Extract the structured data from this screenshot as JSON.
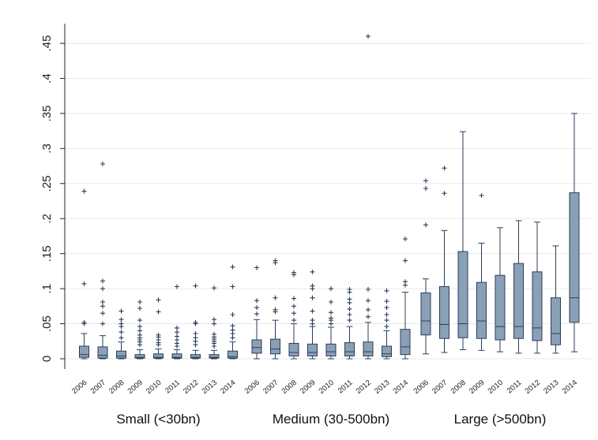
{
  "chart_data": {
    "type": "boxplot",
    "title": "",
    "xlabel": "",
    "ylabel": "",
    "ylim": [
      0,
      0.47
    ],
    "y_ticks": [
      0,
      0.05,
      0.1,
      0.15,
      0.2,
      0.25,
      0.3,
      0.35,
      0.4,
      0.45
    ],
    "y_tick_labels": [
      "0",
      ".05",
      ".1",
      ".15",
      ".2",
      ".25",
      ".3",
      ".35",
      ".4",
      ".45"
    ],
    "grid": "horizontal",
    "colors": {
      "box_fill": "#8aa0b6",
      "box_stroke": "#2c3e57",
      "grid": "#e6eaee"
    },
    "years": [
      "2006",
      "2007",
      "2008",
      "2009",
      "2010",
      "2011",
      "2012",
      "2013",
      "2014"
    ],
    "groups": [
      {
        "name": "Small (<30bn)",
        "boxes": [
          {
            "year": "2006",
            "min": 0.0,
            "q1": 0.002,
            "median": 0.006,
            "q3": 0.018,
            "max": 0.036,
            "outliers": [
              0.05,
              0.052,
              0.107,
              0.239
            ]
          },
          {
            "year": "2007",
            "min": 0.0,
            "q1": 0.001,
            "median": 0.005,
            "q3": 0.017,
            "max": 0.033,
            "outliers": [
              0.05,
              0.065,
              0.075,
              0.081,
              0.1,
              0.111,
              0.278
            ]
          },
          {
            "year": "2008",
            "min": 0.0,
            "q1": 0.001,
            "median": 0.004,
            "q3": 0.011,
            "max": 0.024,
            "outliers": [
              0.03,
              0.038,
              0.046,
              0.05,
              0.056,
              0.068
            ]
          },
          {
            "year": "2009",
            "min": 0.0,
            "q1": 0.001,
            "median": 0.002,
            "q3": 0.006,
            "max": 0.013,
            "outliers": [
              0.02,
              0.024,
              0.027,
              0.03,
              0.034,
              0.04,
              0.046,
              0.055,
              0.072,
              0.081
            ]
          },
          {
            "year": "2010",
            "min": 0.0,
            "q1": 0.001,
            "median": 0.002,
            "q3": 0.007,
            "max": 0.014,
            "outliers": [
              0.02,
              0.023,
              0.027,
              0.031,
              0.034,
              0.067,
              0.084
            ]
          },
          {
            "year": "2011",
            "min": 0.0,
            "q1": 0.001,
            "median": 0.002,
            "q3": 0.007,
            "max": 0.013,
            "outliers": [
              0.018,
              0.022,
              0.027,
              0.032,
              0.038,
              0.044,
              0.103
            ]
          },
          {
            "year": "2012",
            "min": 0.0,
            "q1": 0.001,
            "median": 0.002,
            "q3": 0.006,
            "max": 0.012,
            "outliers": [
              0.02,
              0.025,
              0.03,
              0.036,
              0.05,
              0.052,
              0.104
            ]
          },
          {
            "year": "2013",
            "min": 0.0,
            "q1": 0.001,
            "median": 0.002,
            "q3": 0.006,
            "max": 0.012,
            "outliers": [
              0.018,
              0.022,
              0.025,
              0.028,
              0.031,
              0.035,
              0.05,
              0.056,
              0.101
            ]
          },
          {
            "year": "2014",
            "min": 0.0,
            "q1": 0.001,
            "median": 0.003,
            "q3": 0.011,
            "max": 0.024,
            "outliers": [
              0.03,
              0.036,
              0.041,
              0.047,
              0.063,
              0.103,
              0.131
            ]
          }
        ]
      },
      {
        "name": "Medium (30-500bn)",
        "boxes": [
          {
            "year": "2006",
            "min": 0.0,
            "q1": 0.008,
            "median": 0.016,
            "q3": 0.027,
            "max": 0.056,
            "outliers": [
              0.064,
              0.073,
              0.083,
              0.13
            ]
          },
          {
            "year": "2007",
            "min": 0.0,
            "q1": 0.007,
            "median": 0.014,
            "q3": 0.028,
            "max": 0.055,
            "outliers": [
              0.067,
              0.07,
              0.087,
              0.137,
              0.14
            ]
          },
          {
            "year": "2008",
            "min": 0.0,
            "q1": 0.004,
            "median": 0.009,
            "q3": 0.022,
            "max": 0.05,
            "outliers": [
              0.055,
              0.065,
              0.075,
              0.086,
              0.12,
              0.123
            ]
          },
          {
            "year": "2009",
            "min": 0.0,
            "q1": 0.004,
            "median": 0.009,
            "q3": 0.021,
            "max": 0.046,
            "outliers": [
              0.05,
              0.055,
              0.068,
              0.087,
              0.1,
              0.104,
              0.124
            ]
          },
          {
            "year": "2010",
            "min": 0.0,
            "q1": 0.004,
            "median": 0.01,
            "q3": 0.021,
            "max": 0.045,
            "outliers": [
              0.05,
              0.055,
              0.058,
              0.066,
              0.081,
              0.1
            ]
          },
          {
            "year": "2011",
            "min": 0.0,
            "q1": 0.004,
            "median": 0.01,
            "q3": 0.023,
            "max": 0.046,
            "outliers": [
              0.055,
              0.063,
              0.071,
              0.08,
              0.085,
              0.095,
              0.099
            ]
          },
          {
            "year": "2012",
            "min": 0.0,
            "q1": 0.004,
            "median": 0.01,
            "q3": 0.024,
            "max": 0.052,
            "outliers": [
              0.06,
              0.07,
              0.083,
              0.099,
              0.46
            ]
          },
          {
            "year": "2013",
            "min": 0.0,
            "q1": 0.003,
            "median": 0.007,
            "q3": 0.018,
            "max": 0.04,
            "outliers": [
              0.046,
              0.055,
              0.063,
              0.073,
              0.082,
              0.097
            ]
          },
          {
            "year": "2014",
            "min": 0.0,
            "q1": 0.006,
            "median": 0.017,
            "q3": 0.042,
            "max": 0.095,
            "outliers": [
              0.105,
              0.11,
              0.14,
              0.171
            ]
          }
        ]
      },
      {
        "name": "Large (>500bn)",
        "boxes": [
          {
            "year": "2006",
            "min": 0.007,
            "q1": 0.034,
            "median": 0.054,
            "q3": 0.094,
            "max": 0.114,
            "outliers": [
              0.191,
              0.243,
              0.254
            ]
          },
          {
            "year": "2007",
            "min": 0.009,
            "q1": 0.029,
            "median": 0.049,
            "q3": 0.103,
            "max": 0.183,
            "outliers": [
              0.236,
              0.272
            ]
          },
          {
            "year": "2008",
            "min": 0.013,
            "q1": 0.03,
            "median": 0.05,
            "q3": 0.153,
            "max": 0.324,
            "outliers": []
          },
          {
            "year": "2009",
            "min": 0.012,
            "q1": 0.029,
            "median": 0.054,
            "q3": 0.109,
            "max": 0.165,
            "outliers": [
              0.233
            ]
          },
          {
            "year": "2010",
            "min": 0.01,
            "q1": 0.027,
            "median": 0.046,
            "q3": 0.119,
            "max": 0.187,
            "outliers": []
          },
          {
            "year": "2011",
            "min": 0.008,
            "q1": 0.029,
            "median": 0.046,
            "q3": 0.136,
            "max": 0.197,
            "outliers": []
          },
          {
            "year": "2012",
            "min": 0.008,
            "q1": 0.026,
            "median": 0.044,
            "q3": 0.124,
            "max": 0.195,
            "outliers": []
          },
          {
            "year": "2013",
            "min": 0.008,
            "q1": 0.02,
            "median": 0.036,
            "q3": 0.087,
            "max": 0.161,
            "outliers": []
          },
          {
            "year": "2014",
            "min": 0.01,
            "q1": 0.052,
            "median": 0.087,
            "q3": 0.237,
            "max": 0.35,
            "outliers": []
          }
        ]
      }
    ]
  }
}
